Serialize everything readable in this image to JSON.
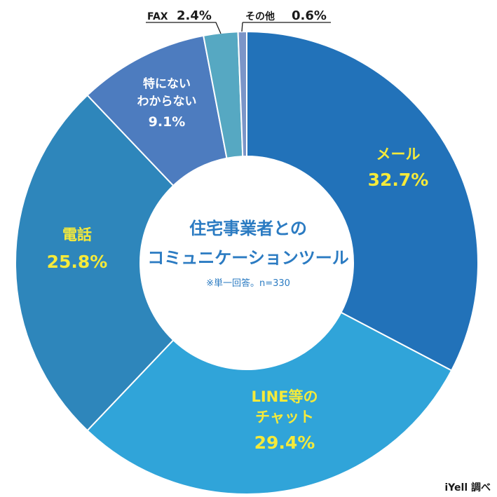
{
  "chart_data": {
    "type": "pie",
    "title": "住宅事業者とのコミュニケーションツール",
    "title_lines": [
      "住宅事業者との",
      "コミュニケーションツール"
    ],
    "note": "※単一回答。n=330",
    "source": "iYell 調べ",
    "unit": "%",
    "slices": [
      {
        "label_lines": [
          "メール"
        ],
        "value": 32.7,
        "value_label": "32.7%",
        "color": "#2272b9"
      },
      {
        "label_lines": [
          "LINE等の",
          "チャット"
        ],
        "value": 29.4,
        "value_label": "29.4%",
        "color": "#30a4d9"
      },
      {
        "label_lines": [
          "電話"
        ],
        "value": 25.8,
        "value_label": "25.8%",
        "color": "#2e86bb"
      },
      {
        "label_lines": [
          "特にない",
          "わからない"
        ],
        "value": 9.1,
        "value_label": "9.1%",
        "color": "#4d7cbf"
      },
      {
        "label_lines": [
          "FAX"
        ],
        "value": 2.4,
        "value_label": "2.4%",
        "color": "#56a8c2"
      },
      {
        "label_lines": [
          "その他"
        ],
        "value": 0.6,
        "value_label": "0.6%",
        "color": "#7b95c8"
      }
    ],
    "label_color": "#f5ea3a"
  }
}
